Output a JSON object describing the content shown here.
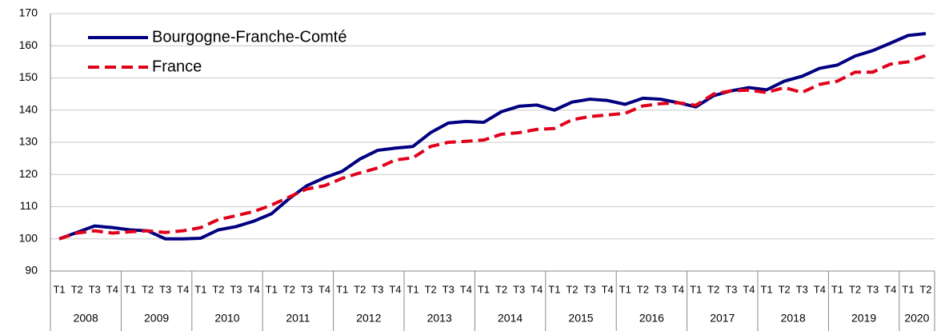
{
  "chart_data": {
    "type": "line",
    "category_groups": [
      {
        "label": "2008",
        "categories": [
          "T1",
          "T2",
          "T3",
          "T4"
        ]
      },
      {
        "label": "2009",
        "categories": [
          "T1",
          "T2",
          "T3",
          "T4"
        ]
      },
      {
        "label": "2010",
        "categories": [
          "T1",
          "T2",
          "T3",
          "T4"
        ]
      },
      {
        "label": "2011",
        "categories": [
          "T1",
          "T2",
          "T3",
          "T4"
        ]
      },
      {
        "label": "2012",
        "categories": [
          "T1",
          "T2",
          "T3",
          "T4"
        ]
      },
      {
        "label": "2013",
        "categories": [
          "T1",
          "T2",
          "T3",
          "T4"
        ]
      },
      {
        "label": "2014",
        "categories": [
          "T1",
          "T2",
          "T3",
          "T4"
        ]
      },
      {
        "label": "2015",
        "categories": [
          "T1",
          "T2",
          "T3",
          "T4"
        ]
      },
      {
        "label": "2016",
        "categories": [
          "T1",
          "T2",
          "T3",
          "T4"
        ]
      },
      {
        "label": "2017",
        "categories": [
          "T1",
          "T2",
          "T3",
          "T4"
        ]
      },
      {
        "label": "2018",
        "categories": [
          "T1",
          "T2",
          "T3",
          "T4"
        ]
      },
      {
        "label": "2019",
        "categories": [
          "T1",
          "T2",
          "T3",
          "T4"
        ]
      },
      {
        "label": "2020",
        "categories": [
          "T1",
          "T2"
        ]
      }
    ],
    "series": [
      {
        "name": "Bourgogne-Franche-Comté",
        "color": "#000080",
        "dashed": false,
        "values": [
          100,
          102,
          104,
          103.5,
          102.8,
          102.5,
          100,
          100,
          100.2,
          102.8,
          103.8,
          105.5,
          107.8,
          112.5,
          116.5,
          119,
          121,
          124.8,
          127.5,
          128.2,
          128.7,
          133,
          136,
          136.5,
          136.2,
          139.5,
          141.2,
          141.6,
          140,
          142.5,
          143.4,
          143,
          141.8,
          143.7,
          143.4,
          142.3,
          141,
          144.5,
          146,
          147,
          146.3,
          149,
          150.5,
          153,
          154,
          156.8,
          158.5,
          160.8,
          163.2,
          163.8
        ]
      },
      {
        "name": "France",
        "color": "#e0001b",
        "dashed": true,
        "values": [
          100,
          101.8,
          102.5,
          101.8,
          102.2,
          102.5,
          102,
          102.5,
          103.5,
          106,
          107.2,
          108.5,
          110.5,
          113,
          115.5,
          116.5,
          118.8,
          120.5,
          122,
          124.5,
          125.2,
          128.7,
          130,
          130.3,
          130.7,
          132.5,
          133,
          134,
          134.3,
          137,
          138,
          138.5,
          139,
          141.3,
          142,
          142.3,
          141.5,
          145,
          146,
          146.2,
          145.5,
          147,
          145.5,
          148,
          149,
          151.8,
          151.8,
          154.3,
          155,
          157
        ]
      }
    ],
    "ylim": [
      90,
      170
    ],
    "yticks": [
      90,
      100,
      110,
      120,
      130,
      140,
      150,
      160,
      170
    ],
    "grid": true,
    "legend": "upper left"
  }
}
